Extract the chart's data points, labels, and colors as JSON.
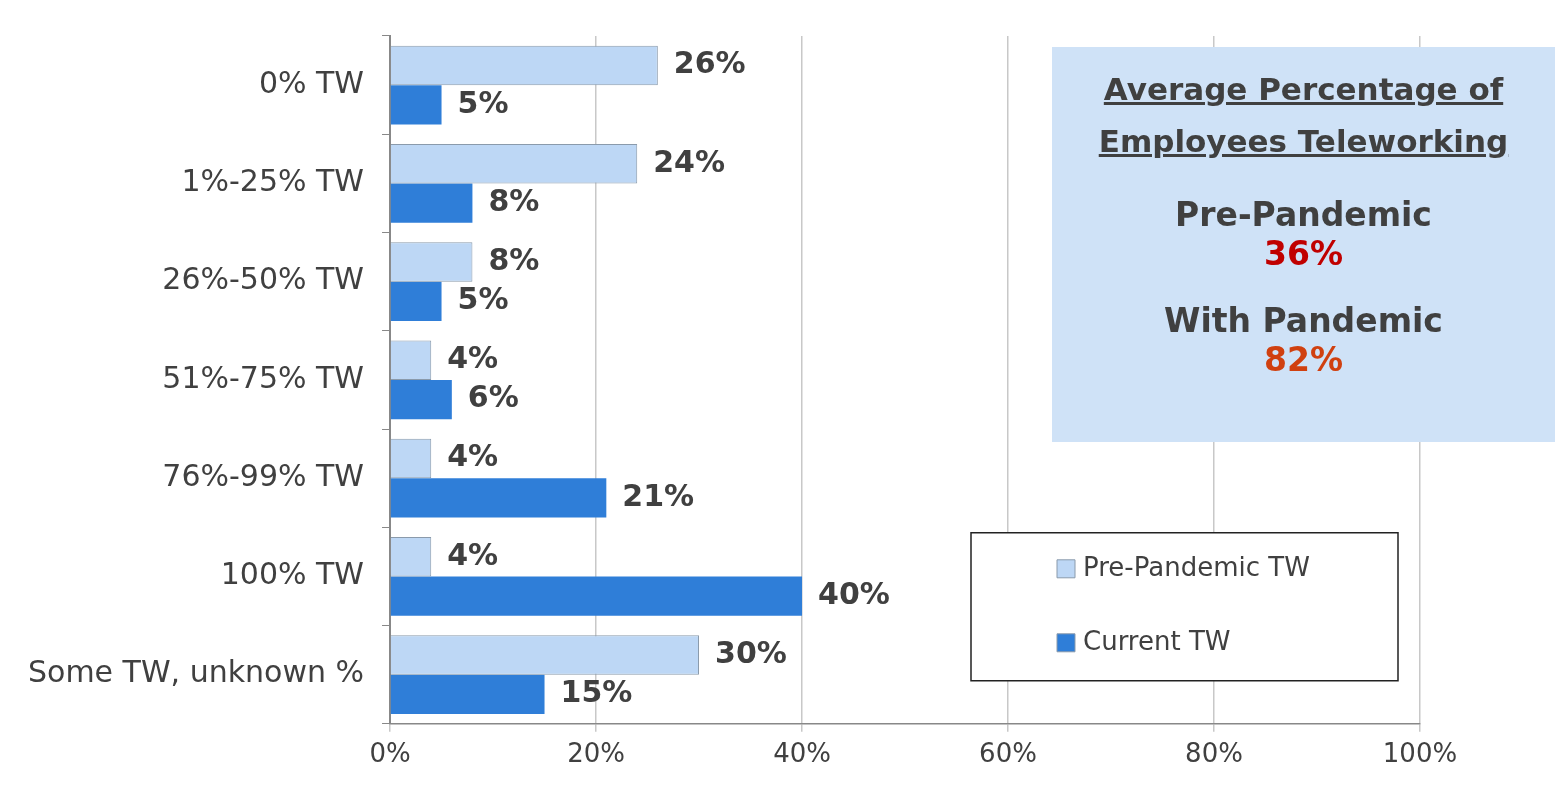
{
  "chart_data": {
    "type": "bar",
    "orientation": "horizontal",
    "categories": [
      "0% TW",
      "1%-25% TW",
      "26%-50% TW",
      "51%-75% TW",
      "76%-99% TW",
      "100% TW",
      "Some TW, unknown %"
    ],
    "series": [
      {
        "name": "Pre-Pandemic TW",
        "color": "#bdd7f5",
        "values": [
          26,
          24,
          8,
          4,
          4,
          4,
          30
        ],
        "value_labels": [
          "26%",
          "24%",
          "8%",
          "4%",
          "4%",
          "4%",
          "30%"
        ]
      },
      {
        "name": "Current TW",
        "color": "#2f7ed8",
        "values": [
          5,
          8,
          5,
          6,
          21,
          40,
          15
        ],
        "value_labels": [
          "5%",
          "8%",
          "5%",
          "6%",
          "21%",
          "40%",
          "15%"
        ]
      }
    ],
    "xlim": [
      0,
      100
    ],
    "xticks": [
      {
        "value": 0,
        "label": "0%"
      },
      {
        "value": 20,
        "label": "20%"
      },
      {
        "value": 40,
        "label": "40%"
      },
      {
        "value": 60,
        "label": "60%"
      },
      {
        "value": 80,
        "label": "80%"
      },
      {
        "value": 100,
        "label": "100%"
      }
    ],
    "grid": "x",
    "legend": "bottom right",
    "annotations": [
      "Average Percentage of Employees Teleworking",
      "Pre-Pandemic",
      "36%",
      "With Pandemic",
      "82%"
    ]
  }
}
